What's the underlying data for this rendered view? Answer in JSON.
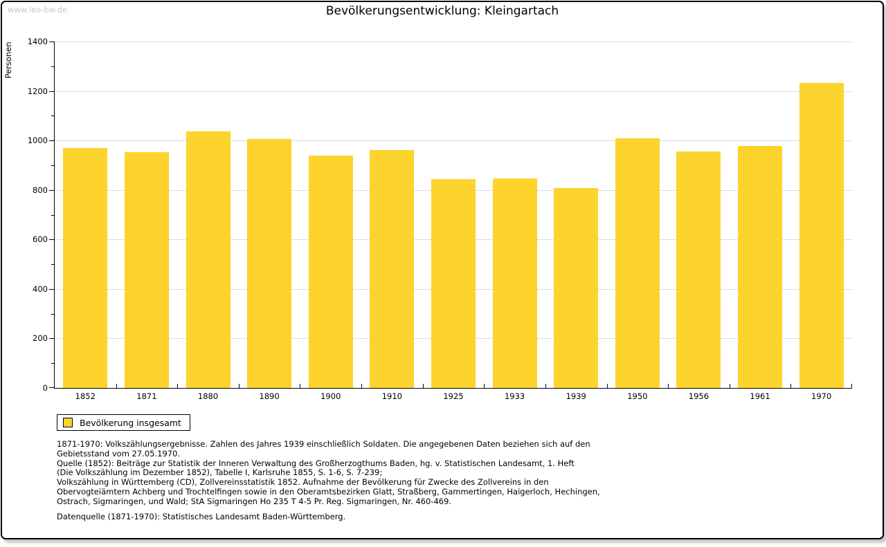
{
  "header": {
    "watermark": "www.leo-bw.de",
    "title": "Bevölkerungsentwicklung: Kleingartach"
  },
  "chart_data": {
    "type": "bar",
    "title": "Bevölkerungsentwicklung: Kleingartach",
    "xlabel": "",
    "ylabel": "Personen",
    "ylim": [
      0,
      1400
    ],
    "ytick_step": 200,
    "y_minor_step": 100,
    "grid": true,
    "legend_position": "bottom-left",
    "categories": [
      "1852",
      "1871",
      "1880",
      "1890",
      "1900",
      "1910",
      "1925",
      "1933",
      "1939",
      "1950",
      "1956",
      "1961",
      "1970"
    ],
    "series": [
      {
        "name": "Bevölkerung insgesamt",
        "values": [
          971,
          953,
          1037,
          1006,
          939,
          961,
          844,
          846,
          808,
          1009,
          955,
          979,
          1232
        ]
      }
    ]
  },
  "legend": {
    "label": "Bevölkerung insgesamt"
  },
  "footnotes": {
    "lines": [
      "1871-1970: Volkszählungsergebnisse. Zahlen des Jahres 1939 einschließlich Soldaten. Die angegebenen Daten beziehen sich auf den",
      "Gebietsstand vom 27.05.1970.",
      "Quelle (1852): Beiträge zur Statistik der Inneren Verwaltung des Großherzogthums Baden, hg. v. Statistischen Landesamt, 1. Heft",
      "(Die Volkszählung im Dezember 1852), Tabelle I, Karlsruhe 1855, S. 1-6, S. 7-239;",
      "Volkszählung in Württemberg (CD), Zollvereinsstatistik 1852. Aufnahme der Bevölkerung für Zwecke des Zollvereins in den",
      "Obervogteiämtern Achberg und Trochtelfingen sowie in den Oberamtsbezirken Glatt, Straßberg, Gammertingen, Haigerloch, Hechingen,",
      "Ostrach, Sigmaringen, und Wald; StA Sigmaringen Ho 235 T 4-5 Pr. Reg. Sigmaringen, Nr. 460-469."
    ],
    "datasource": "Datenquelle (1871-1970): Statistisches Landesamt Baden-Württemberg."
  },
  "colors": {
    "bar": "#FDD32D",
    "grid": "#DCDCDC",
    "axis": "#000000",
    "watermark": "#C6C6C6",
    "page_border": "#000000"
  }
}
